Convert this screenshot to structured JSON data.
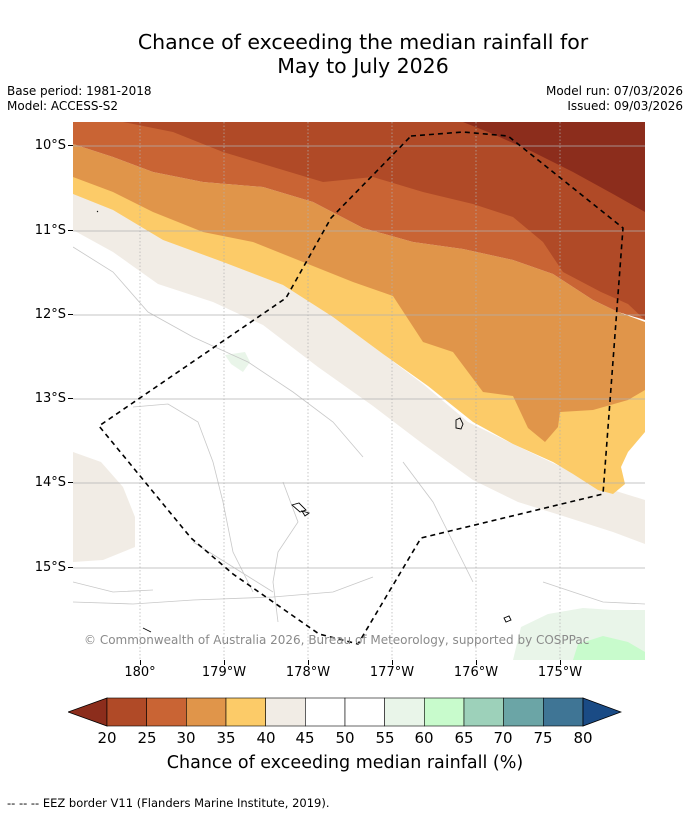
{
  "title": {
    "line1": "Chance of exceeding the median rainfall for",
    "line2": "May to July 2026"
  },
  "meta": {
    "base_period": "Base period: 1981-2018",
    "model": "Model: ACCESS-S2",
    "model_run": "Model run: 07/03/2026",
    "issued": "Issued: 09/03/2026"
  },
  "map": {
    "lat_labels": [
      "10°S",
      "11°S",
      "12°S",
      "13°S",
      "14°S",
      "15°S"
    ],
    "lon_labels": [
      "180°",
      "179°W",
      "178°W",
      "177°W",
      "176°W",
      "175°W"
    ],
    "copyright": "© Commonwealth of Australia 2026, Bureau of Meteorology, supported by COSPPac"
  },
  "colorbar": {
    "ticks": [
      "20",
      "25",
      "30",
      "35",
      "40",
      "45",
      "50",
      "55",
      "60",
      "65",
      "70",
      "75",
      "80"
    ],
    "colors": [
      "#8c2d1c",
      "#b04a27",
      "#c96434",
      "#e0954a",
      "#fccb68",
      "#f1ece5",
      "#ffffff",
      "#ffffff",
      "#e9f5e9",
      "#c8fbcc",
      "#9dd1ba",
      "#6ba5a6",
      "#3f7595",
      "#1a4b85"
    ],
    "title": "Chance of exceeding median rainfall (%)"
  },
  "footnote": "--  --  -- EEZ border V11 (Flanders Marine Institute, 2019)."
}
